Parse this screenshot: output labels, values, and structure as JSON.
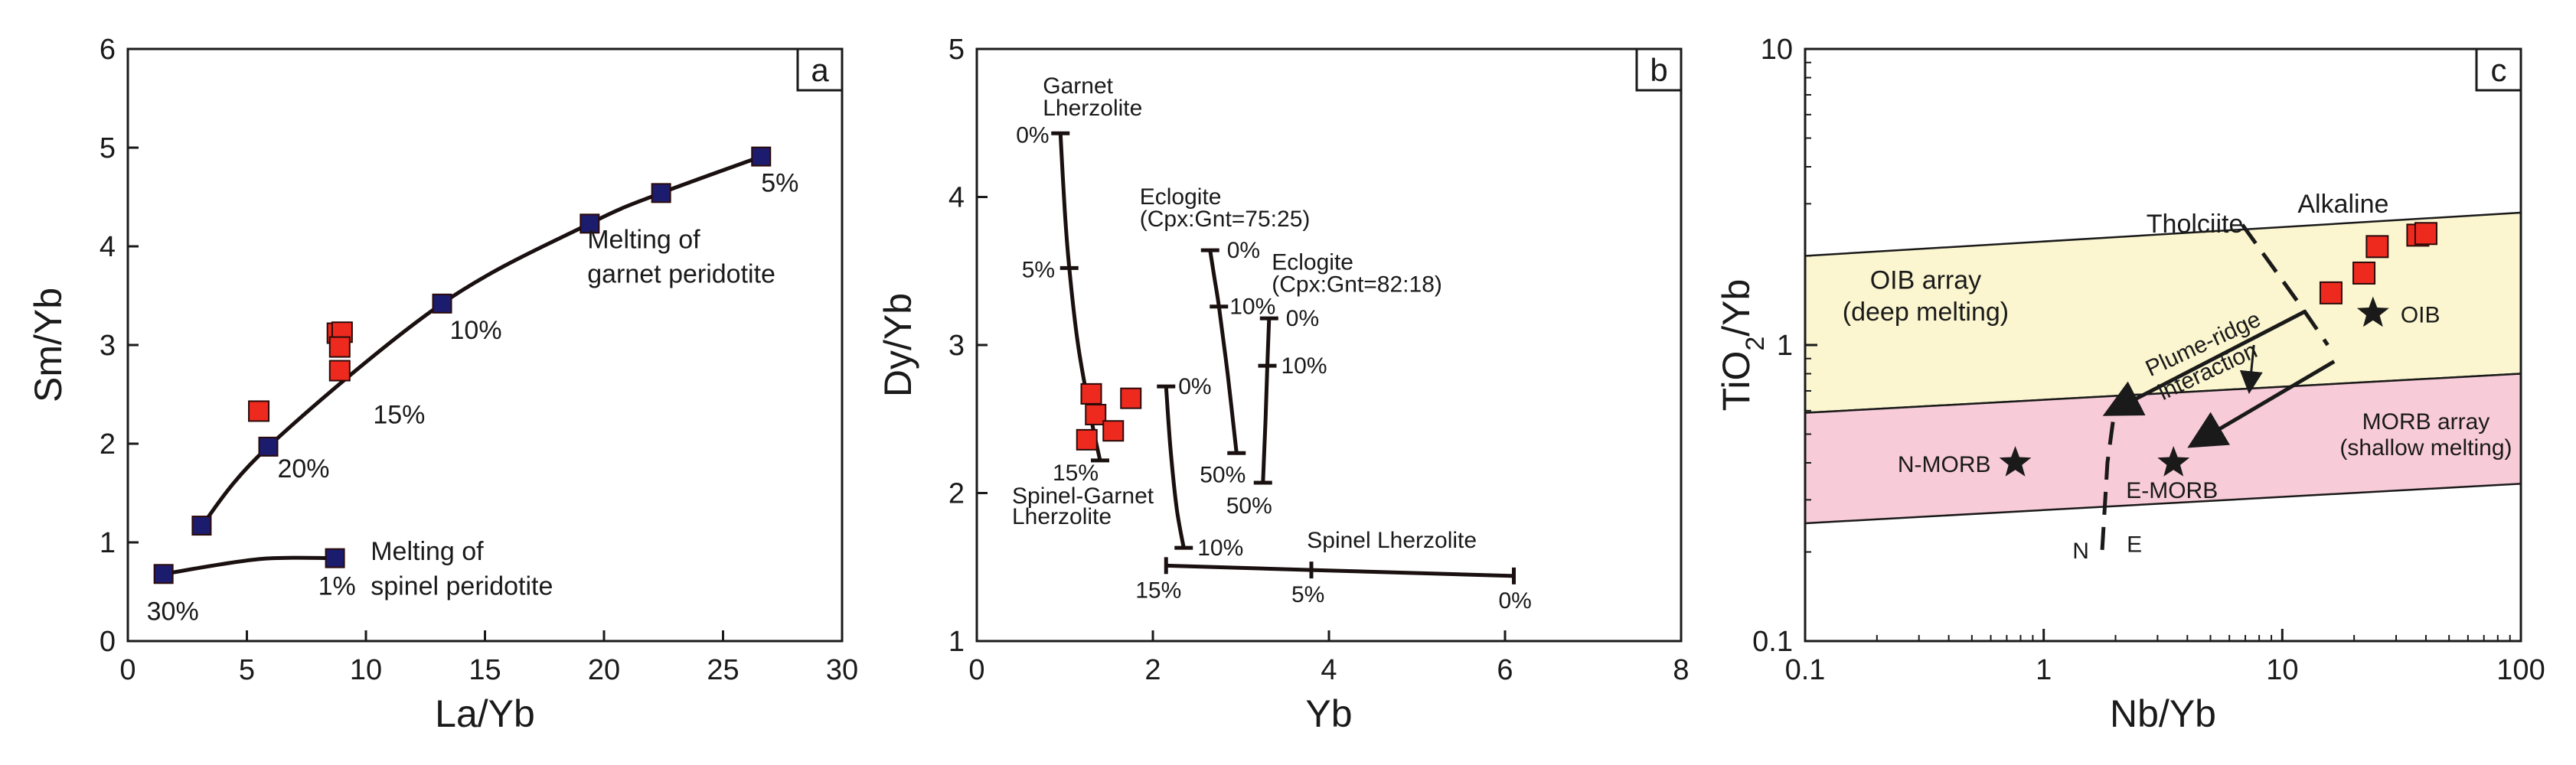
{
  "colors": {
    "sample": "#ee2a1f",
    "model": "#1c1c6e",
    "curve": "#1a1010",
    "oib_fill": "#fbf6cf",
    "morb_fill": "#f8cbd8"
  },
  "chart_data": [
    {
      "panel": "a",
      "type": "scatter",
      "xlabel": "La/Yb",
      "ylabel": "Sm/Yb",
      "xlim": [
        0,
        30
      ],
      "ylim": [
        0,
        6
      ],
      "x_ticks": [
        "0",
        "5",
        "10",
        "15",
        "20",
        "25",
        "30"
      ],
      "y_ticks": [
        "0",
        "1",
        "2",
        "3",
        "4",
        "5",
        "6"
      ],
      "series": [
        {
          "name": "Melting of garnet peridotite",
          "line1": "Melting of",
          "line2": "garnet peridotite",
          "x": [
            3.1,
            5.9,
            13.2,
            19.4,
            22.4,
            26.6
          ],
          "y": [
            1.17,
            1.97,
            3.42,
            4.23,
            4.54,
            4.91
          ],
          "labels": [
            "",
            "20%",
            "10%",
            "",
            "",
            "5%"
          ],
          "extra_labels": [
            {
              "text": "15%",
              "x": 10.3,
              "y": 2.3
            }
          ]
        },
        {
          "name": "Melting of spinel peridotite",
          "line1": "Melting of",
          "line2": "spinel peridotite",
          "x": [
            1.5,
            8.7
          ],
          "y": [
            0.68,
            0.84
          ],
          "labels": [
            "30%",
            "1%"
          ]
        },
        {
          "name": "samples",
          "x": [
            5.5,
            8.8,
            9.0,
            8.9,
            8.9
          ],
          "y": [
            2.33,
            3.12,
            3.13,
            2.98,
            2.74
          ]
        }
      ]
    },
    {
      "panel": "b",
      "type": "line",
      "xlabel": "Yb",
      "ylabel": "Dy/Yb",
      "xlim": [
        0,
        8
      ],
      "ylim": [
        1,
        5
      ],
      "x_ticks": [
        "0",
        "2",
        "4",
        "6",
        "8"
      ],
      "y_ticks": [
        "1",
        "2",
        "3",
        "4",
        "5"
      ],
      "series": [
        {
          "name": "Garnet Lherzolite",
          "line1": "Garnet",
          "line2": "Lherzolite",
          "x": [
            0.95,
            1.0,
            1.05,
            1.15,
            1.3,
            1.4
          ],
          "y": [
            4.43,
            3.9,
            3.52,
            3.0,
            2.5,
            2.22
          ],
          "ticks": [
            {
              "x": 0.95,
              "y": 4.43,
              "label": "0%"
            },
            {
              "x": 1.05,
              "y": 3.52,
              "label": "5%"
            },
            {
              "x": 1.4,
              "y": 2.22,
              "label": "15%"
            }
          ]
        },
        {
          "name": "Eclogite (Cpx:Gnt=75:25)",
          "line1": "Eclogite",
          "line2": "(Cpx:Gnt=75:25)",
          "x": [
            2.65,
            2.7,
            2.75,
            2.85,
            2.95
          ],
          "y": [
            3.64,
            3.45,
            3.26,
            2.8,
            2.27
          ],
          "ticks": [
            {
              "x": 2.65,
              "y": 3.64,
              "label": "0%"
            },
            {
              "x": 2.75,
              "y": 3.26,
              "label": "10%"
            },
            {
              "x": 2.95,
              "y": 2.27,
              "label": "50%"
            }
          ]
        },
        {
          "name": "Eclogite (Cpx:Gnt=82:18)",
          "line1": "Eclogite",
          "line2": "(Cpx:Gnt=82:18)",
          "x": [
            3.32,
            3.3,
            3.28,
            3.25
          ],
          "y": [
            3.18,
            2.86,
            2.5,
            2.07
          ],
          "ticks": [
            {
              "x": 3.32,
              "y": 3.18,
              "label": "0%"
            },
            {
              "x": 3.3,
              "y": 2.86,
              "label": "10%"
            },
            {
              "x": 3.25,
              "y": 2.07,
              "label": "50%"
            }
          ]
        },
        {
          "name": "Spinel-Garnet Lherzolite",
          "line1": "Spinel-Garnet",
          "line2": "Lherzolite",
          "x": [
            2.15,
            2.2,
            2.27,
            2.35
          ],
          "y": [
            2.72,
            2.3,
            1.9,
            1.63
          ],
          "ticks": [
            {
              "x": 2.15,
              "y": 2.72,
              "label": "0%"
            },
            {
              "x": 2.35,
              "y": 1.63,
              "label": "10%"
            }
          ]
        },
        {
          "name": "Spinel Lherzolite",
          "x": [
            2.15,
            3.8,
            6.1
          ],
          "y": [
            1.51,
            1.48,
            1.44
          ],
          "ticks": [
            {
              "x": 2.15,
              "y": 1.51,
              "label": "15%"
            },
            {
              "x": 3.8,
              "y": 1.48,
              "label": "5%"
            },
            {
              "x": 6.1,
              "y": 1.44,
              "label": "0%"
            }
          ]
        },
        {
          "name": "samples",
          "x": [
            1.3,
            1.35,
            1.25,
            1.55,
            1.75
          ],
          "y": [
            2.67,
            2.53,
            2.36,
            2.42,
            2.64
          ]
        }
      ]
    },
    {
      "panel": "c",
      "type": "scatter",
      "xlabel": "Nb/Yb",
      "ylabel": "TiO2/Yb",
      "xscale": "log",
      "yscale": "log",
      "xlim": [
        0.1,
        100
      ],
      "ylim": [
        0.1,
        10
      ],
      "x_ticks": [
        "0.1",
        "1",
        "10",
        "100"
      ],
      "y_ticks": [
        "0.1",
        "1",
        "10"
      ],
      "regions": [
        {
          "name": "OIB array",
          "line1": "OIB array",
          "line2": "(deep melting)",
          "upper": [
            [
              0.1,
              2.0
            ],
            [
              100,
              2.8
            ]
          ],
          "lower": [
            [
              0.1,
              0.59
            ],
            [
              100,
              0.8
            ]
          ]
        },
        {
          "name": "MORB array",
          "line1": "MORB array",
          "line2": "(shallow melting)",
          "upper": [
            [
              0.1,
              0.59
            ],
            [
              100,
              0.8
            ]
          ],
          "lower": [
            [
              0.1,
              0.25
            ],
            [
              100,
              0.34
            ]
          ]
        }
      ],
      "reference_points": [
        {
          "label": "N-MORB",
          "x": 0.76,
          "y": 0.4
        },
        {
          "label": "E-MORB",
          "x": 3.5,
          "y": 0.4
        },
        {
          "label": "OIB",
          "x": 24,
          "y": 1.28
        }
      ],
      "samples": {
        "x": [
          16,
          22,
          25,
          37,
          40
        ],
        "y": [
          1.5,
          1.75,
          2.15,
          2.35,
          2.38
        ]
      },
      "annotations": [
        "Tholciite",
        "Alkaline",
        "Plume-ridge",
        "interaction",
        "N",
        "E"
      ]
    }
  ]
}
